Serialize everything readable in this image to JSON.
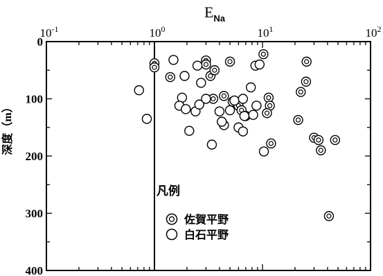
{
  "chart_data": {
    "type": "scatter",
    "title": "E",
    "title_sub": "Na",
    "ylabel": "深度（m）",
    "xscale": "log",
    "xlim": [
      0.1,
      100
    ],
    "ylim": [
      400,
      0
    ],
    "y_inverted": true,
    "x_axis_position": "top",
    "x_ticks": [
      {
        "value": 0.1,
        "base": "10",
        "exp": "-1"
      },
      {
        "value": 1,
        "base": "10",
        "exp": "0"
      },
      {
        "value": 10,
        "base": "10",
        "exp": "1"
      },
      {
        "value": 100,
        "base": "10",
        "exp": "2"
      }
    ],
    "y_ticks": [
      "0",
      "100",
      "200",
      "300",
      "400"
    ],
    "reference_line_x": 1,
    "legend": {
      "title": "凡例",
      "placement": "bottom-left-inside",
      "entries": [
        {
          "label": "佐賀平野",
          "marker": "double-circle"
        },
        {
          "label": "白石平野",
          "marker": "circle"
        }
      ]
    },
    "series": [
      {
        "name": "佐賀平野",
        "marker": "double-circle",
        "points": [
          [
            1.0,
            38
          ],
          [
            1.0,
            45
          ],
          [
            1.4,
            62
          ],
          [
            3.0,
            33
          ],
          [
            3.0,
            40
          ],
          [
            3.3,
            60
          ],
          [
            3.6,
            50
          ],
          [
            5.0,
            35
          ],
          [
            5.3,
            105
          ],
          [
            6.0,
            112
          ],
          [
            6.4,
            120
          ],
          [
            7.0,
            130
          ],
          [
            10.2,
            22
          ],
          [
            11.4,
            98
          ],
          [
            11.7,
            112
          ],
          [
            11.0,
            125
          ],
          [
            12.0,
            178
          ],
          [
            3.5,
            100
          ],
          [
            4.4,
            95
          ],
          [
            25.6,
            35
          ],
          [
            25.3,
            70
          ],
          [
            22.6,
            88
          ],
          [
            21.4,
            137
          ],
          [
            30.0,
            168
          ],
          [
            33.0,
            172
          ],
          [
            34.7,
            190
          ],
          [
            47.0,
            172
          ],
          [
            41.2,
            305
          ]
        ]
      },
      {
        "name": "白石平野",
        "marker": "circle",
        "points": [
          [
            0.72,
            85
          ],
          [
            0.85,
            135
          ],
          [
            1.5,
            32
          ],
          [
            1.9,
            60
          ],
          [
            1.8,
            98
          ],
          [
            1.7,
            112
          ],
          [
            1.95,
            118
          ],
          [
            2.1,
            156
          ],
          [
            2.4,
            122
          ],
          [
            2.6,
            110
          ],
          [
            3.0,
            100
          ],
          [
            2.7,
            72
          ],
          [
            2.5,
            42
          ],
          [
            4.0,
            122
          ],
          [
            4.4,
            146
          ],
          [
            4.2,
            140
          ],
          [
            5.5,
            103
          ],
          [
            5.0,
            120
          ],
          [
            7.8,
            80
          ],
          [
            6.6,
            100
          ],
          [
            8.2,
            128
          ],
          [
            6.8,
            130
          ],
          [
            6.0,
            150
          ],
          [
            6.6,
            157
          ],
          [
            8.8,
            112
          ],
          [
            8.6,
            42
          ],
          [
            3.4,
            180
          ],
          [
            10.3,
            192
          ],
          [
            9.4,
            40
          ]
        ]
      }
    ]
  }
}
